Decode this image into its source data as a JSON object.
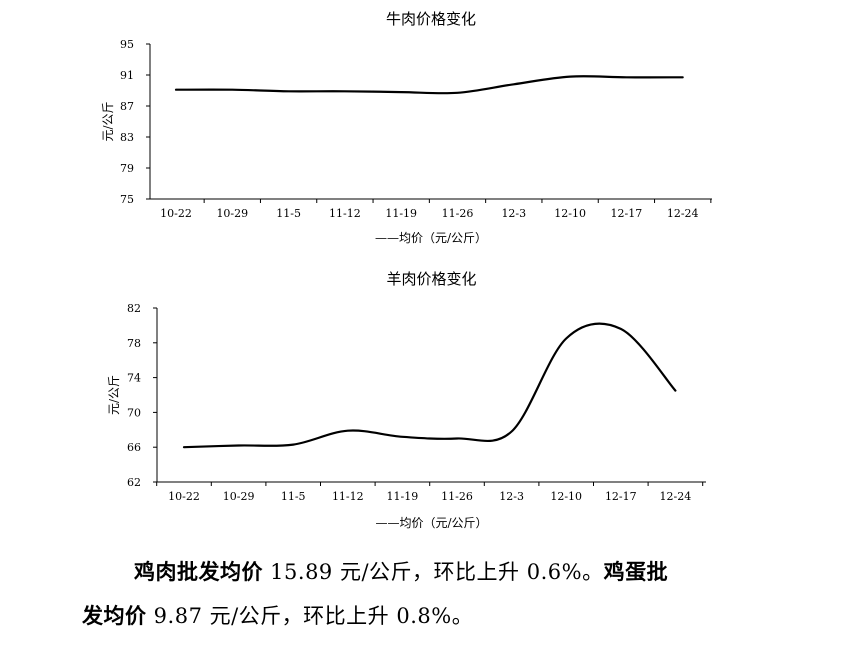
{
  "chart_data": [
    {
      "type": "line",
      "title": "牛肉价格变化",
      "ylabel": "元/公斤",
      "legend": "——均价（元/公斤）",
      "legend_position": "bottom",
      "grid": false,
      "categories": [
        "10-22",
        "10-29",
        "11-5",
        "11-12",
        "11-19",
        "11-26",
        "12-3",
        "12-10",
        "12-17",
        "12-24"
      ],
      "yticks": [
        75,
        79,
        83,
        87,
        91,
        95
      ],
      "ylim": [
        75,
        95
      ],
      "series": [
        {
          "values": [
            89.1,
            89.1,
            88.9,
            88.9,
            88.8,
            88.7,
            89.8,
            90.8,
            90.7,
            90.7
          ]
        }
      ]
    },
    {
      "type": "line",
      "title": "羊肉价格变化",
      "ylabel": "元/公斤",
      "legend": "——均价（元/公斤）",
      "legend_position": "bottom",
      "grid": false,
      "categories": [
        "10-22",
        "10-29",
        "11-5",
        "11-12",
        "11-19",
        "11-26",
        "12-3",
        "12-10",
        "12-17",
        "12-24"
      ],
      "yticks": [
        62,
        66,
        70,
        74,
        78,
        82
      ],
      "ylim": [
        62,
        82
      ],
      "series": [
        {
          "values": [
            66.0,
            66.2,
            66.3,
            67.9,
            67.2,
            67.0,
            67.8,
            78.5,
            79.6,
            72.5
          ]
        }
      ]
    }
  ],
  "text": {
    "bold1": "鸡肉批发均价",
    "rest1": " 15.89 元/公斤，环比上升 0.6%。",
    "bold2a": "鸡蛋批",
    "bold2b": "发均价",
    "rest2": " 9.87 元/公斤，环比上升 0.8%。"
  }
}
